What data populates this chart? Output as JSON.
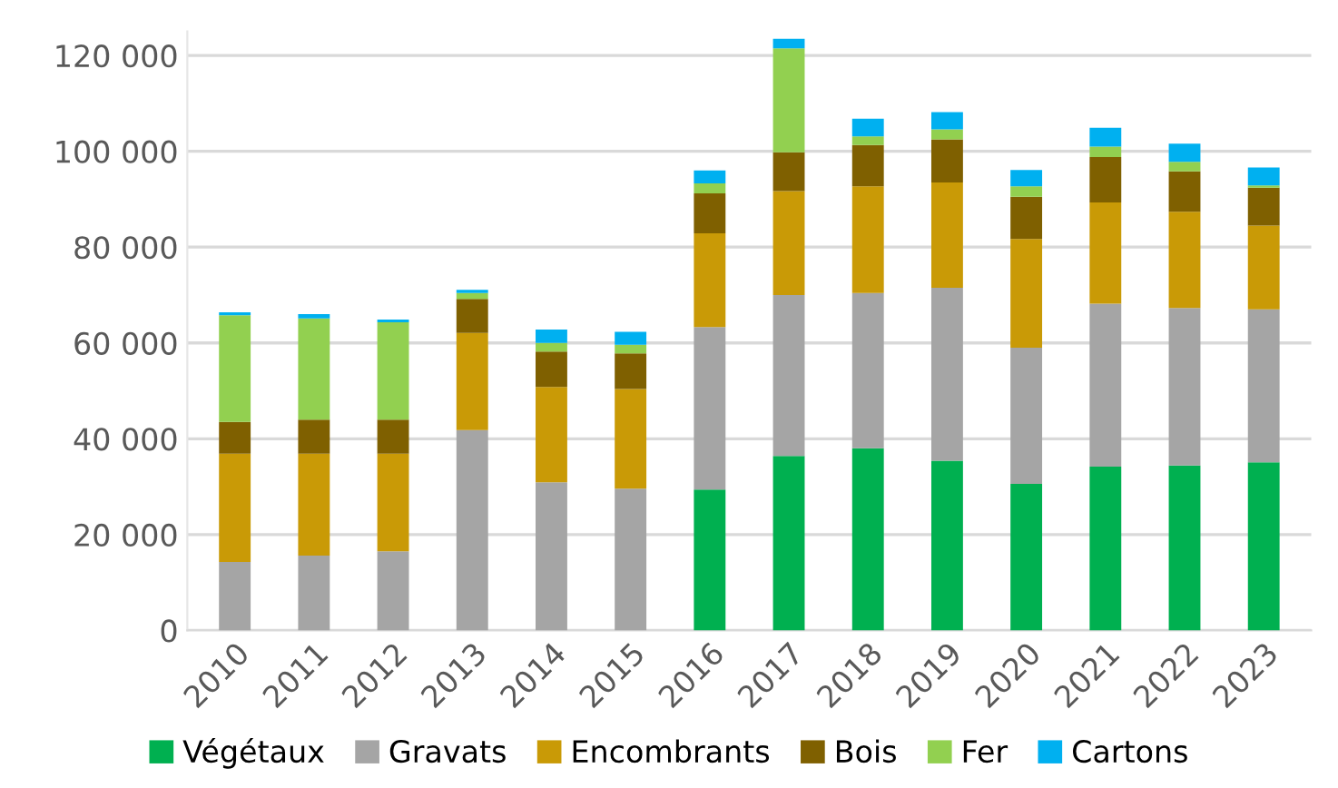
{
  "chart_data": {
    "type": "bar",
    "stacked": true,
    "categories": [
      "2010",
      "2011",
      "2012",
      "2013",
      "2014",
      "2015",
      "2016",
      "2017",
      "2018",
      "2019",
      "2020",
      "2021",
      "2022",
      "2023"
    ],
    "series": [
      {
        "name": "Végétaux",
        "color": "#00b050",
        "values": [
          0,
          0,
          0,
          0,
          0,
          0,
          29400,
          36400,
          38000,
          35400,
          30600,
          34200,
          34400,
          35100
        ]
      },
      {
        "name": "Gravats",
        "color": "#a5a5a5",
        "values": [
          14300,
          15600,
          16500,
          41800,
          30900,
          29600,
          33900,
          33600,
          32400,
          36100,
          28400,
          34000,
          32900,
          31900
        ]
      },
      {
        "name": "Encombrants",
        "color": "#c99a06",
        "values": [
          22600,
          21300,
          20400,
          20300,
          19900,
          20800,
          19600,
          21700,
          22300,
          22000,
          22700,
          21100,
          20100,
          17500
        ]
      },
      {
        "name": "Bois",
        "color": "#7f6000",
        "values": [
          6600,
          7100,
          7100,
          7100,
          7400,
          7400,
          8300,
          8100,
          8600,
          9000,
          8800,
          9500,
          8400,
          7900
        ]
      },
      {
        "name": "Fer",
        "color": "#92d050",
        "values": [
          22300,
          21100,
          20300,
          1200,
          1800,
          1800,
          2100,
          21700,
          1800,
          2100,
          2200,
          2200,
          2000,
          500
        ]
      },
      {
        "name": "Cartons",
        "color": "#00b0f0",
        "values": [
          600,
          900,
          600,
          700,
          2800,
          2700,
          2700,
          2000,
          3700,
          3600,
          3400,
          3900,
          3800,
          3700
        ]
      }
    ],
    "ylim": [
      0,
      125000
    ],
    "yticks": [
      0,
      {
        "value": 20000,
        "label": "20 000"
      },
      {
        "value": 40000,
        "label": "40 000"
      },
      {
        "value": 60000,
        "label": "60 000"
      },
      {
        "value": 80000,
        "label": "80 000"
      },
      {
        "value": 100000,
        "label": "100 000"
      },
      {
        "value": 120000,
        "label": "120 000"
      }
    ],
    "grid": "y",
    "legend": "bottom"
  }
}
